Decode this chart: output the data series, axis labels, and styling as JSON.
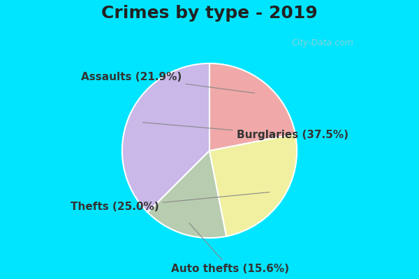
{
  "title": "Crimes by type - 2019",
  "slices": [
    {
      "label": "Burglaries",
      "pct": 37.5,
      "color": "#c9b8e8"
    },
    {
      "label": "Auto thefts",
      "pct": 15.6,
      "color": "#b8ccb0"
    },
    {
      "label": "Thefts",
      "pct": 25.0,
      "color": "#f0f0a0"
    },
    {
      "label": "Assaults",
      "pct": 21.9,
      "color": "#f0a8a8"
    }
  ],
  "bg_top": "#00e5ff",
  "bg_main": "#d8f0e0",
  "watermark": "City-Data.com",
  "title_fontsize": 18,
  "label_fontsize": 11,
  "startangle": 90
}
